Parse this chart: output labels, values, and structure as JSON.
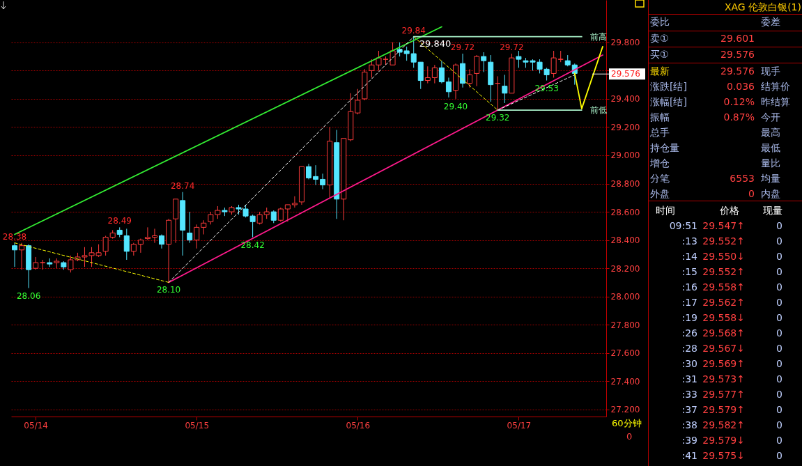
{
  "chart_data": [
    {
      "type": "candlestick",
      "categories": [
        null,
        null,
        null,
        "05/14",
        null,
        null,
        null,
        null,
        null,
        null,
        null,
        null,
        null,
        null,
        null,
        null,
        null,
        null,
        null,
        null,
        null,
        null,
        null,
        null,
        null,
        null,
        "05/15",
        null,
        null,
        null,
        null,
        null,
        null,
        null,
        null,
        null,
        null,
        null,
        null,
        null,
        null,
        null,
        null,
        null,
        null,
        null,
        null,
        null,
        null,
        "05/16",
        null,
        null,
        null,
        null,
        null,
        null,
        null,
        null,
        null,
        null,
        null,
        null,
        null,
        null,
        null,
        null,
        null,
        null,
        null,
        null,
        null,
        null,
        "05/17",
        null,
        null,
        null,
        null,
        null,
        null,
        null,
        null,
        null,
        null,
        null,
        null
      ],
      "ohlc": [
        [
          28.36,
          28.38,
          28.21,
          28.33
        ],
        [
          28.33,
          28.38,
          28.19,
          28.36
        ],
        [
          28.36,
          28.37,
          28.06,
          28.19
        ],
        [
          28.2,
          28.28,
          28.19,
          28.24
        ],
        [
          28.24,
          28.26,
          28.19,
          28.24
        ],
        [
          28.24,
          28.27,
          28.21,
          28.23
        ],
        [
          28.24,
          28.27,
          28.2,
          28.25
        ],
        [
          28.24,
          28.25,
          28.19,
          28.21
        ],
        [
          28.19,
          28.29,
          28.17,
          28.26
        ],
        [
          28.26,
          28.31,
          28.25,
          28.28
        ],
        [
          28.28,
          28.35,
          28.21,
          28.29
        ],
        [
          28.29,
          28.35,
          28.21,
          28.31
        ],
        [
          28.29,
          28.37,
          28.28,
          28.31
        ],
        [
          28.32,
          28.43,
          28.29,
          28.42
        ],
        [
          28.42,
          28.47,
          28.41,
          28.45
        ],
        [
          28.47,
          28.49,
          28.42,
          28.44
        ],
        [
          28.43,
          28.48,
          28.26,
          28.32
        ],
        [
          28.32,
          28.38,
          28.29,
          28.37
        ],
        [
          28.37,
          28.41,
          28.31,
          28.4
        ],
        [
          28.41,
          28.49,
          28.4,
          28.42
        ],
        [
          28.42,
          28.48,
          28.38,
          28.43
        ],
        [
          28.43,
          28.44,
          28.34,
          28.37
        ],
        [
          28.37,
          28.55,
          28.1,
          28.54
        ],
        [
          28.55,
          28.69,
          28.38,
          28.69
        ],
        [
          28.68,
          28.74,
          28.29,
          28.47
        ],
        [
          28.45,
          28.6,
          28.38,
          28.4
        ],
        [
          28.4,
          28.51,
          28.34,
          28.49
        ],
        [
          28.49,
          28.54,
          28.44,
          28.52
        ],
        [
          28.53,
          28.6,
          28.51,
          28.58
        ],
        [
          28.58,
          28.64,
          28.55,
          28.61
        ],
        [
          28.61,
          28.63,
          28.57,
          28.6
        ],
        [
          28.6,
          28.64,
          28.58,
          28.63
        ],
        [
          28.63,
          28.65,
          28.58,
          28.62
        ],
        [
          28.62,
          28.65,
          28.56,
          28.57
        ],
        [
          28.57,
          28.58,
          28.42,
          28.53
        ],
        [
          28.52,
          28.6,
          28.51,
          28.58
        ],
        [
          28.58,
          28.63,
          28.55,
          28.6
        ],
        [
          28.6,
          28.61,
          28.52,
          28.54
        ],
        [
          28.54,
          28.63,
          28.53,
          28.62
        ],
        [
          28.62,
          28.65,
          28.53,
          28.65
        ],
        [
          28.65,
          28.71,
          28.63,
          28.66
        ],
        [
          28.67,
          28.92,
          28.65,
          28.92
        ],
        [
          28.92,
          28.94,
          28.83,
          28.84
        ],
        [
          28.85,
          28.93,
          28.79,
          28.83
        ],
        [
          28.83,
          28.87,
          28.76,
          28.79
        ],
        [
          28.79,
          29.2,
          28.7,
          29.1
        ],
        [
          29.09,
          29.18,
          28.55,
          28.69
        ],
        [
          28.69,
          29.12,
          28.54,
          29.12
        ],
        [
          29.11,
          29.44,
          29.1,
          29.31
        ],
        [
          29.3,
          29.47,
          29.29,
          29.39
        ],
        [
          29.4,
          29.61,
          29.39,
          29.59
        ],
        [
          29.6,
          29.68,
          29.55,
          29.64
        ],
        [
          29.64,
          29.74,
          29.6,
          29.69
        ],
        [
          29.68,
          29.7,
          29.64,
          29.68
        ],
        [
          29.64,
          29.8,
          29.64,
          29.74
        ],
        [
          29.75,
          29.8,
          29.7,
          29.73
        ],
        [
          29.74,
          29.77,
          29.67,
          29.72
        ],
        [
          29.72,
          29.84,
          29.62,
          29.66
        ],
        [
          29.66,
          29.66,
          29.47,
          29.53
        ],
        [
          29.53,
          29.63,
          29.51,
          29.55
        ],
        [
          29.55,
          29.64,
          29.51,
          29.62
        ],
        [
          29.62,
          29.67,
          29.51,
          29.52
        ],
        [
          29.52,
          29.55,
          29.41,
          29.45
        ],
        [
          29.46,
          29.65,
          29.4,
          29.64
        ],
        [
          29.65,
          29.72,
          29.48,
          29.51
        ],
        [
          29.51,
          29.61,
          29.48,
          29.57
        ],
        [
          29.58,
          29.71,
          29.49,
          29.7
        ],
        [
          29.7,
          29.73,
          29.59,
          29.67
        ],
        [
          29.66,
          29.71,
          29.38,
          29.5
        ],
        [
          29.51,
          29.56,
          29.32,
          29.51
        ],
        [
          29.49,
          29.57,
          29.37,
          29.44
        ],
        [
          29.44,
          29.72,
          29.44,
          29.69
        ],
        [
          29.7,
          29.74,
          29.62,
          29.68
        ],
        [
          29.67,
          29.69,
          29.62,
          29.66
        ],
        [
          29.67,
          29.68,
          29.6,
          29.66
        ],
        [
          29.66,
          29.68,
          29.58,
          29.61
        ],
        [
          29.61,
          29.62,
          29.53,
          29.57
        ],
        [
          29.58,
          29.74,
          29.55,
          29.69
        ],
        [
          29.68,
          29.74,
          29.66,
          29.68
        ],
        [
          29.67,
          29.71,
          29.63,
          29.64
        ],
        [
          29.64,
          29.65,
          29.5,
          29.58
        ],
        null,
        null,
        null,
        null
      ],
      "value_labels": [
        "28.38",
        null,
        "28.06",
        null,
        null,
        null,
        null,
        null,
        null,
        null,
        null,
        null,
        null,
        null,
        null,
        "28.49",
        null,
        null,
        null,
        null,
        null,
        null,
        "28.10",
        null,
        "28.74",
        null,
        null,
        null,
        null,
        null,
        null,
        null,
        null,
        null,
        "28.42",
        null,
        null,
        null,
        null,
        null,
        null,
        null,
        null,
        null,
        null,
        null,
        null,
        null,
        null,
        null,
        null,
        null,
        null,
        null,
        null,
        null,
        null,
        "29.84",
        null,
        null,
        null,
        null,
        null,
        "29.40",
        "29.72",
        null,
        null,
        null,
        null,
        "29.32",
        null,
        "29.72",
        null,
        null,
        null,
        null,
        "29.53",
        null,
        null,
        null,
        null,
        null,
        null,
        null,
        null
      ],
      "series": [
        {
          "type": "line",
          "color": "#33ee33",
          "values": [
            28.44,
            null,
            null,
            null,
            null,
            null,
            null,
            null,
            null,
            null,
            null,
            null,
            null,
            null,
            null,
            null,
            null,
            null,
            null,
            null,
            null,
            null,
            null,
            null,
            null,
            null,
            null,
            null,
            null,
            null,
            null,
            null,
            null,
            null,
            null,
            null,
            null,
            null,
            null,
            null,
            null,
            null,
            null,
            null,
            null,
            null,
            null,
            null,
            null,
            null,
            null,
            null,
            null,
            null,
            null,
            null,
            null,
            null,
            null,
            null,
            null,
            29.91,
            null,
            null,
            null,
            null,
            null,
            null,
            null,
            null,
            null,
            null,
            null,
            null,
            null,
            null,
            null,
            null,
            null,
            null,
            null,
            null,
            null,
            null,
            null
          ]
        },
        {
          "type": "line",
          "color": "#ff1a8c",
          "values": [
            null,
            null,
            null,
            null,
            null,
            null,
            null,
            null,
            null,
            null,
            null,
            null,
            null,
            null,
            null,
            null,
            null,
            null,
            null,
            null,
            null,
            null,
            28.1,
            null,
            null,
            null,
            null,
            null,
            null,
            null,
            null,
            null,
            null,
            null,
            null,
            null,
            null,
            null,
            null,
            null,
            null,
            null,
            null,
            null,
            null,
            null,
            null,
            null,
            null,
            null,
            null,
            null,
            null,
            null,
            null,
            null,
            null,
            null,
            null,
            null,
            null,
            null,
            null,
            null,
            null,
            null,
            null,
            null,
            null,
            null,
            null,
            null,
            null,
            null,
            null,
            null,
            null,
            null,
            null,
            null,
            null,
            null,
            null,
            null,
            29.71
          ]
        },
        {
          "type": "line",
          "color": "#ffffff",
          "line_style": "dashed",
          "values": [
            null,
            null,
            null,
            null,
            null,
            null,
            null,
            null,
            null,
            null,
            null,
            null,
            null,
            null,
            null,
            null,
            null,
            null,
            null,
            null,
            null,
            null,
            28.1,
            null,
            null,
            null,
            null,
            null,
            null,
            null,
            null,
            null,
            null,
            null,
            null,
            null,
            null,
            null,
            null,
            null,
            null,
            null,
            null,
            null,
            null,
            null,
            null,
            null,
            null,
            null,
            null,
            null,
            null,
            null,
            null,
            null,
            null,
            29.84,
            null,
            null,
            null,
            null,
            null,
            null,
            null,
            null,
            null,
            null,
            null,
            null,
            null,
            null,
            null,
            null,
            null,
            null,
            null,
            null,
            null,
            null,
            null,
            null,
            null,
            null,
            null
          ]
        },
        {
          "type": "line",
          "color": "#ffffff",
          "line_style": "dashed",
          "values": [
            null,
            null,
            null,
            null,
            null,
            null,
            null,
            null,
            null,
            null,
            null,
            null,
            null,
            null,
            null,
            null,
            null,
            null,
            null,
            null,
            null,
            null,
            null,
            null,
            null,
            null,
            null,
            null,
            null,
            null,
            null,
            null,
            null,
            null,
            null,
            null,
            null,
            null,
            null,
            null,
            null,
            null,
            null,
            null,
            null,
            null,
            null,
            null,
            null,
            null,
            null,
            null,
            null,
            null,
            null,
            null,
            null,
            null,
            null,
            null,
            null,
            null,
            null,
            null,
            null,
            null,
            null,
            null,
            null,
            29.32,
            null,
            null,
            null,
            null,
            null,
            null,
            null,
            null,
            null,
            null,
            29.57,
            null,
            null,
            null,
            null
          ]
        },
        {
          "type": "line",
          "color": "#ffff00",
          "line_style": "dashed",
          "values": [
            28.38,
            null,
            null,
            null,
            null,
            null,
            null,
            null,
            null,
            null,
            null,
            null,
            null,
            null,
            null,
            null,
            null,
            null,
            null,
            null,
            null,
            null,
            28.1,
            null,
            null,
            null,
            null,
            null,
            null,
            null,
            null,
            null,
            null,
            null,
            null,
            null,
            null,
            null,
            null,
            null,
            null,
            null,
            null,
            null,
            null,
            null,
            null,
            null,
            null,
            null,
            null,
            null,
            null,
            null,
            null,
            null,
            null,
            null,
            null,
            null,
            null,
            null,
            null,
            null,
            null,
            null,
            null,
            null,
            null,
            null,
            null,
            null,
            null,
            null,
            null,
            null,
            null,
            null,
            null,
            null,
            null,
            null,
            null,
            null,
            null
          ]
        },
        {
          "type": "line",
          "color": "#ffff00",
          "line_style": "dashed",
          "values": [
            null,
            null,
            null,
            null,
            null,
            null,
            null,
            null,
            null,
            null,
            null,
            null,
            null,
            null,
            null,
            null,
            null,
            null,
            null,
            null,
            null,
            null,
            null,
            null,
            null,
            null,
            null,
            null,
            null,
            null,
            null,
            null,
            null,
            null,
            null,
            null,
            null,
            null,
            null,
            null,
            null,
            null,
            null,
            null,
            null,
            null,
            null,
            null,
            null,
            null,
            null,
            null,
            null,
            null,
            null,
            null,
            null,
            29.84,
            null,
            null,
            null,
            null,
            null,
            null,
            null,
            null,
            null,
            null,
            null,
            29.32,
            null,
            null,
            null,
            null,
            null,
            null,
            null,
            null,
            null,
            null,
            null,
            null,
            null,
            null,
            null
          ]
        },
        {
          "type": "line",
          "color": "#ffff00",
          "values": [
            null,
            null,
            null,
            null,
            null,
            null,
            null,
            null,
            null,
            null,
            null,
            null,
            null,
            null,
            null,
            null,
            null,
            null,
            null,
            null,
            null,
            null,
            null,
            null,
            null,
            null,
            null,
            null,
            null,
            null,
            null,
            null,
            null,
            null,
            null,
            null,
            null,
            null,
            null,
            null,
            null,
            null,
            null,
            null,
            null,
            null,
            null,
            null,
            null,
            null,
            null,
            null,
            null,
            null,
            null,
            null,
            null,
            null,
            null,
            null,
            null,
            null,
            null,
            null,
            null,
            null,
            null,
            null,
            null,
            null,
            null,
            null,
            null,
            null,
            null,
            null,
            null,
            null,
            null,
            null,
            29.58,
            29.33,
            null,
            null,
            29.77
          ]
        },
        {
          "type": "line",
          "name": "前高",
          "color": "#a8f0c8",
          "values": [
            null,
            null,
            null,
            null,
            null,
            null,
            null,
            null,
            null,
            null,
            null,
            null,
            null,
            null,
            null,
            null,
            null,
            null,
            null,
            null,
            null,
            null,
            null,
            null,
            null,
            null,
            null,
            null,
            null,
            null,
            null,
            null,
            null,
            null,
            null,
            null,
            null,
            null,
            null,
            null,
            null,
            null,
            null,
            null,
            null,
            null,
            null,
            null,
            null,
            null,
            null,
            null,
            null,
            null,
            null,
            null,
            null,
            29.84,
            null,
            null,
            null,
            null,
            null,
            null,
            null,
            null,
            null,
            null,
            null,
            null,
            null,
            null,
            null,
            null,
            null,
            null,
            null,
            null,
            null,
            null,
            null,
            29.84,
            null,
            null,
            null
          ],
          "value_labels": [
            null,
            null,
            null,
            null,
            null,
            null,
            null,
            null,
            null,
            null,
            null,
            null,
            null,
            null,
            null,
            null,
            null,
            null,
            null,
            null,
            null,
            null,
            null,
            null,
            null,
            null,
            null,
            null,
            null,
            null,
            null,
            null,
            null,
            null,
            null,
            null,
            null,
            null,
            null,
            null,
            null,
            null,
            null,
            null,
            null,
            null,
            null,
            null,
            null,
            null,
            null,
            null,
            null,
            null,
            null,
            null,
            null,
            "29.840",
            null,
            null,
            null,
            null,
            null,
            null,
            null,
            null,
            null,
            null,
            null,
            null,
            null,
            null,
            null,
            null,
            null,
            null,
            null,
            null,
            null,
            null,
            null,
            null,
            null,
            null,
            null
          ]
        },
        {
          "type": "line",
          "name": "前低",
          "color": "#a8f0c8",
          "values": [
            null,
            null,
            null,
            null,
            null,
            null,
            null,
            null,
            null,
            null,
            null,
            null,
            null,
            null,
            null,
            null,
            null,
            null,
            null,
            null,
            null,
            null,
            null,
            null,
            null,
            null,
            null,
            null,
            null,
            null,
            null,
            null,
            null,
            null,
            null,
            null,
            null,
            null,
            null,
            null,
            null,
            null,
            null,
            null,
            null,
            null,
            null,
            null,
            null,
            null,
            null,
            null,
            null,
            null,
            null,
            null,
            null,
            null,
            null,
            null,
            null,
            null,
            null,
            null,
            null,
            null,
            null,
            null,
            null,
            29.32,
            null,
            null,
            null,
            null,
            null,
            null,
            null,
            null,
            null,
            null,
            null,
            29.32,
            null,
            null,
            null
          ]
        }
      ],
      "ylim": [
        27.15,
        30.1
      ],
      "yticks": [
        {
          "value": 27.2,
          "label": "27.200"
        },
        {
          "value": 27.4,
          "label": "27.400"
        },
        {
          "value": 27.6,
          "label": "27.600"
        },
        {
          "value": 27.8,
          "label": "27.800"
        },
        {
          "value": 28.0,
          "label": "28.000"
        },
        {
          "value": 28.2,
          "label": "28.200"
        },
        {
          "value": 28.4,
          "label": "28.400"
        },
        {
          "value": 28.6,
          "label": "28.600"
        },
        {
          "value": 28.8,
          "label": "28.800"
        },
        {
          "value": 29.0,
          "label": "29.000"
        },
        {
          "value": 29.2,
          "label": "29.200"
        },
        {
          "value": 29.4,
          "label": "29.400"
        },
        {
          "value": 29.6,
          "label": null
        },
        {
          "value": 29.8,
          "label": "29.800"
        }
      ],
      "ref_lines": [
        {
          "axis": "y",
          "value": 29.576,
          "label": "29.576",
          "color": "#ffffff"
        }
      ],
      "grid": "y",
      "annotations": [
        "60分钟",
        "0"
      ]
    },
    {
      "type": "other",
      "title": "XAG 伦敦白银(1)",
      "annotations": [
        "委比",
        "委差",
        "卖①",
        "29.601",
        "买①",
        "29.576",
        "最新",
        "29.576",
        "现手",
        "涨跌[结]",
        "0.036",
        "结算价",
        "涨幅[结]",
        "0.12%",
        "昨结算",
        "振幅",
        "0.87%",
        "今开",
        "总手",
        "最高",
        "持仓量",
        "最低",
        "增仓",
        "量比",
        "分笔",
        "6553",
        "均量",
        "外盘",
        "0",
        "内盘",
        "时间",
        "价格",
        "现量",
        "09:51",
        "29.547↑",
        "0",
        ":13",
        "29.552↑",
        "0",
        ":14",
        "29.550↓",
        "0",
        ":15",
        "29.552↑",
        "0",
        ":16",
        "29.558↑",
        "0",
        ":17",
        "29.562↑",
        "0",
        ":19",
        "29.558↓",
        "0",
        ":26",
        "29.568↑",
        "0",
        ":28",
        "29.567↓",
        "0",
        ":30",
        "29.569↑",
        "0",
        ":31",
        "29.573↑",
        "0",
        ":33",
        "29.577↑",
        "0",
        ":37",
        "29.579↑",
        "0",
        ":38",
        "29.582↑",
        "0",
        ":39",
        "29.579↓",
        "0",
        ":41",
        "29.575↓",
        "0"
      ]
    }
  ]
}
